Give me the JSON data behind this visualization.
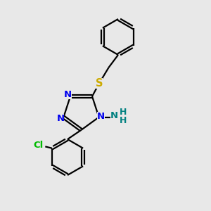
{
  "background_color": "#e8e8e8",
  "bond_color": "#000000",
  "bond_width": 1.6,
  "dbo": 0.055,
  "atom_colors": {
    "N": "#0000ee",
    "S": "#ccaa00",
    "Cl": "#00bb00",
    "NH2": "#008080"
  },
  "figsize": [
    3.0,
    3.0
  ],
  "dpi": 100,
  "xlim": [
    0,
    10
  ],
  "ylim": [
    0,
    10
  ]
}
